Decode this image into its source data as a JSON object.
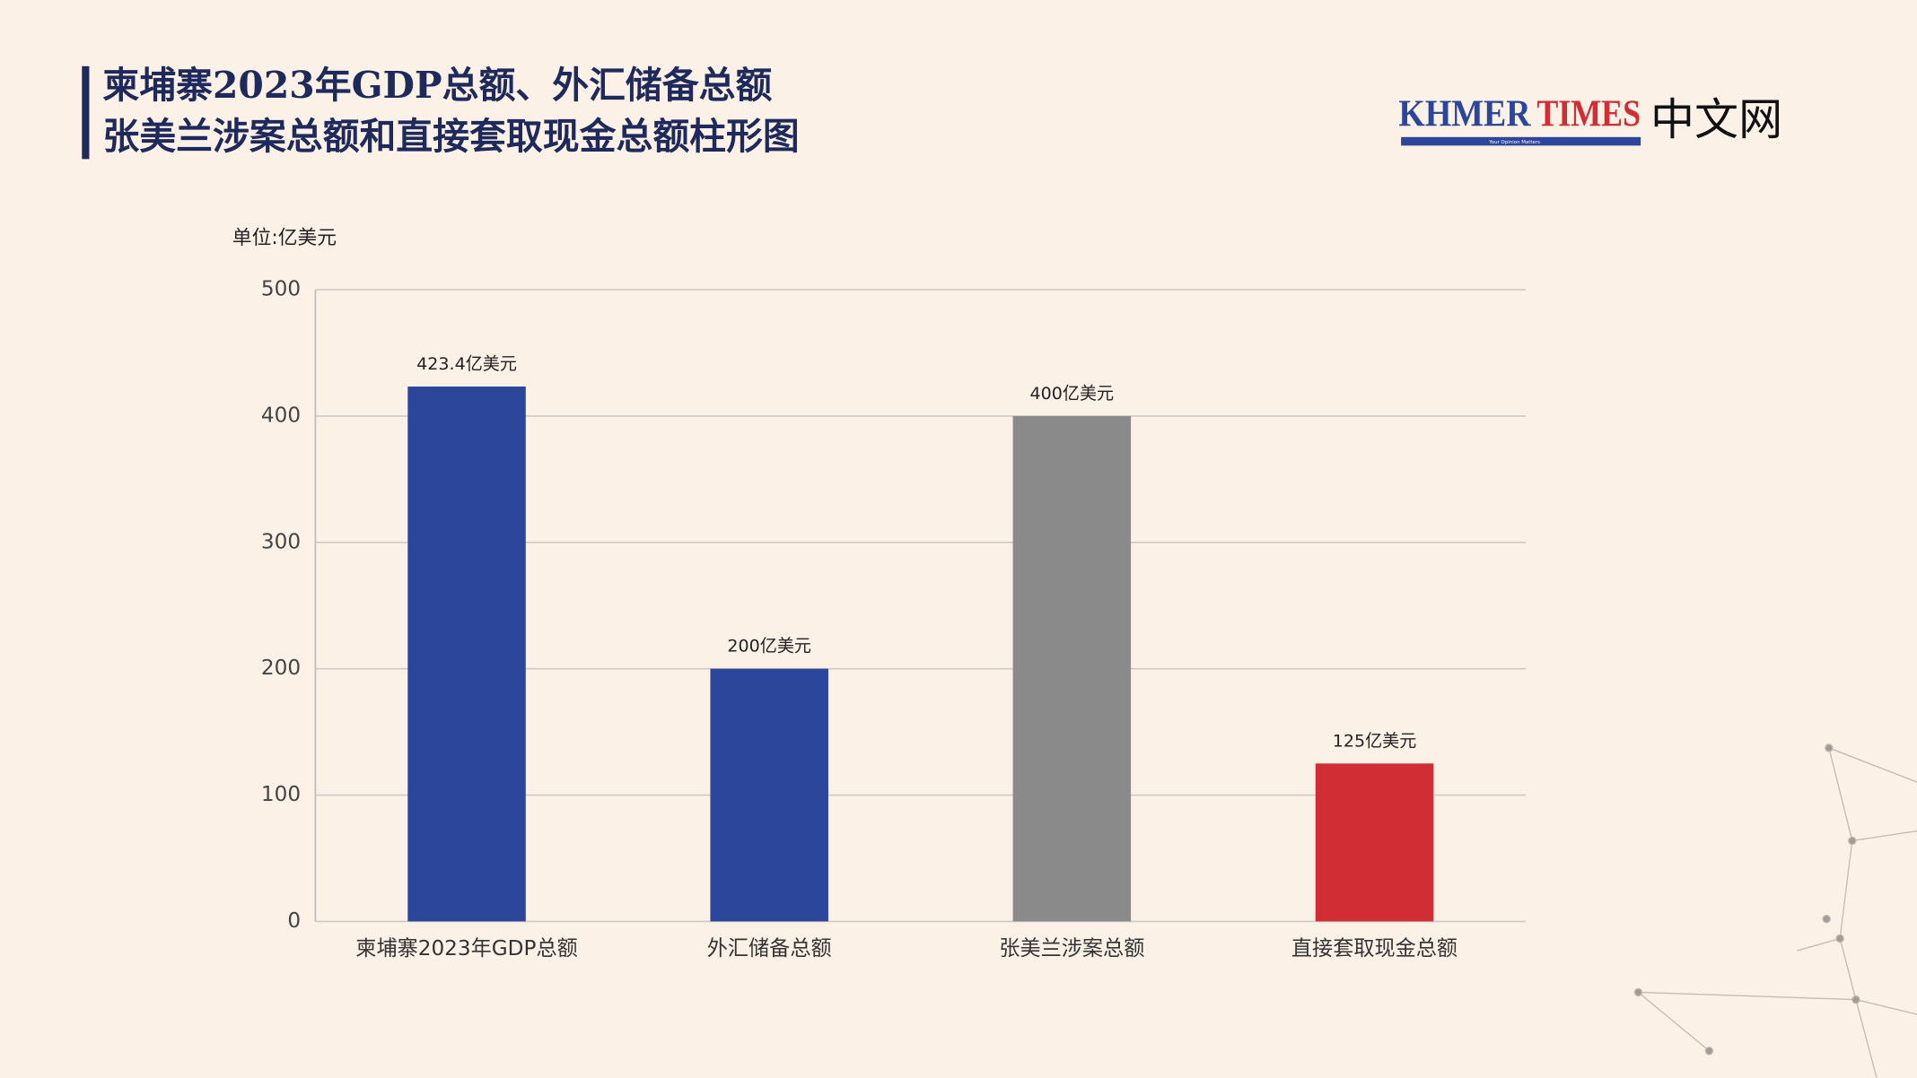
{
  "chart_data": {
    "type": "bar",
    "title": [
      "柬埔寨2023年GDP总额、外汇储备总额",
      "张美兰涉案总额和直接套取现金总额柱形图"
    ],
    "unit_label": "单位:亿美元",
    "logo": {
      "name1": "KHMER",
      "name2": "TIMES",
      "suffix": "中文网",
      "tagline": "Your Opinion Matters"
    },
    "categories": [
      "柬埔寨2023年GDP总额",
      "外汇储备总额",
      "张美兰涉案总额",
      "直接套取现金总额"
    ],
    "values": [
      423.4,
      200,
      400,
      125
    ],
    "value_labels": [
      "423.4亿美元",
      "200亿美元",
      "400亿美元",
      "125亿美元"
    ],
    "colors": [
      "#2c469c",
      "#2c469c",
      "#8a8a8a",
      "#d12d34"
    ],
    "ylim": [
      0,
      500
    ],
    "yticks": [
      0,
      100,
      200,
      300,
      400,
      500
    ],
    "grid": true
  }
}
